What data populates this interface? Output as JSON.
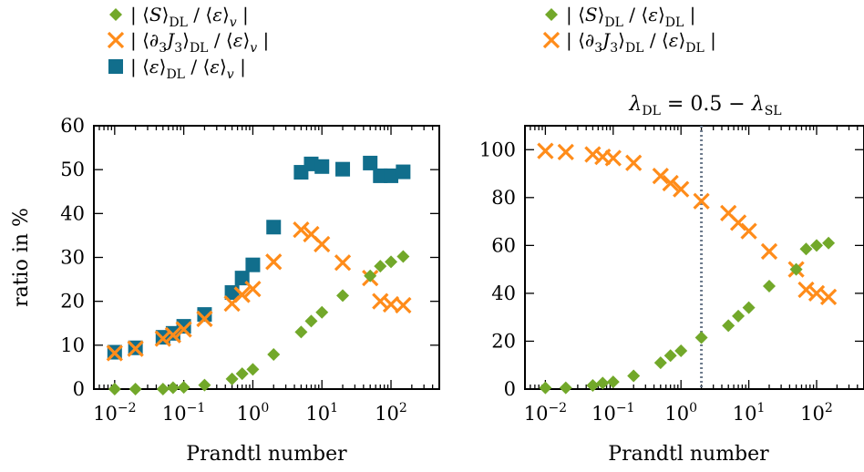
{
  "colors": {
    "green": "#72a82a",
    "orange": "#ff8c1a",
    "teal": "#116e8c",
    "vline": "#6c7a8c"
  },
  "chart_data": [
    {
      "type": "scatter",
      "xlabel": "Prandtl number",
      "ylabel": "ratio in %",
      "xscale": "log",
      "xlim": [
        0.005,
        500
      ],
      "ylim": [
        0,
        60
      ],
      "xticks": [
        {
          "base": "10",
          "exp": "−2"
        },
        {
          "base": "10",
          "exp": "−1"
        },
        {
          "base": "10",
          "exp": "0"
        },
        {
          "base": "10",
          "exp": "1"
        },
        {
          "base": "10",
          "exp": "2"
        }
      ],
      "yticks": [
        "0",
        "10",
        "20",
        "30",
        "40",
        "50",
        "60"
      ],
      "legend_position": "top",
      "series": [
        {
          "name": "| ⟨S⟩DL / ⟨ε⟩v |",
          "marker": "diamond",
          "color": "green",
          "x": [
            0.01,
            0.02,
            0.05,
            0.07,
            0.1,
            0.2,
            0.5,
            0.7,
            1,
            2,
            5,
            7,
            10,
            20,
            50,
            70,
            100,
            150
          ],
          "y": [
            0,
            0,
            0,
            0.3,
            0.4,
            0.9,
            2.3,
            3.5,
            4.5,
            7.9,
            13,
            15.5,
            17.5,
            21.3,
            25.8,
            28,
            29,
            30.2
          ]
        },
        {
          "name": "| ⟨∂3J3⟩DL / ⟨ε⟩v |",
          "marker": "cross",
          "color": "orange",
          "x": [
            0.01,
            0.02,
            0.05,
            0.07,
            0.1,
            0.2,
            0.5,
            0.7,
            1,
            2,
            5,
            7,
            10,
            20,
            50,
            70,
            100,
            150
          ],
          "y": [
            8.2,
            9.2,
            11.5,
            12.3,
            13.6,
            16,
            19.5,
            21.5,
            22.8,
            29,
            36.3,
            35.3,
            33,
            28.8,
            25.3,
            20,
            19.3,
            19.1
          ]
        },
        {
          "name": "| ⟨ε⟩DL / ⟨ε⟩v |",
          "marker": "square",
          "color": "teal",
          "x": [
            0.01,
            0.02,
            0.05,
            0.07,
            0.1,
            0.2,
            0.5,
            0.7,
            1,
            2,
            5,
            7,
            10,
            20,
            50,
            70,
            100,
            150
          ],
          "y": [
            8.4,
            9.4,
            11.8,
            12.7,
            14.3,
            17,
            22,
            25.3,
            28.3,
            36.9,
            49.4,
            51.3,
            50.7,
            50.1,
            51.5,
            48.6,
            48.6,
            49.5
          ]
        }
      ]
    },
    {
      "type": "scatter",
      "title": "λDL = 0.5 − λSL",
      "xlabel": "Prandtl number",
      "xscale": "log",
      "xlim": [
        0.005,
        500
      ],
      "ylim": [
        0,
        110
      ],
      "xticks": [
        {
          "base": "10",
          "exp": "−2"
        },
        {
          "base": "10",
          "exp": "−1"
        },
        {
          "base": "10",
          "exp": "0"
        },
        {
          "base": "10",
          "exp": "1"
        },
        {
          "base": "10",
          "exp": "2"
        }
      ],
      "yticks": [
        "0",
        "20",
        "40",
        "60",
        "80",
        "100"
      ],
      "vline_x": 2,
      "legend_position": "top",
      "series": [
        {
          "name": "| ⟨S⟩DL / ⟨ε⟩DL |",
          "marker": "diamond",
          "color": "green",
          "x": [
            0.01,
            0.02,
            0.05,
            0.07,
            0.1,
            0.2,
            0.5,
            0.7,
            1,
            2,
            5,
            7,
            10,
            20,
            50,
            70,
            100,
            150
          ],
          "y": [
            0.5,
            0.5,
            1.5,
            2.5,
            3,
            5.5,
            11,
            14,
            16,
            21.5,
            26.5,
            30.5,
            34,
            43,
            50,
            58.5,
            60,
            61
          ]
        },
        {
          "name": "| ⟨∂3J3⟩DL / ⟨ε⟩DL |",
          "marker": "cross",
          "color": "orange",
          "x": [
            0.01,
            0.02,
            0.05,
            0.07,
            0.1,
            0.2,
            0.5,
            0.7,
            1,
            2,
            5,
            7,
            10,
            20,
            50,
            70,
            100,
            150
          ],
          "y": [
            99.5,
            99,
            98,
            97,
            96.5,
            94.5,
            89,
            86,
            83.5,
            78.5,
            73.5,
            69.5,
            66,
            57.5,
            50,
            41.5,
            40,
            38.5
          ]
        }
      ]
    }
  ]
}
